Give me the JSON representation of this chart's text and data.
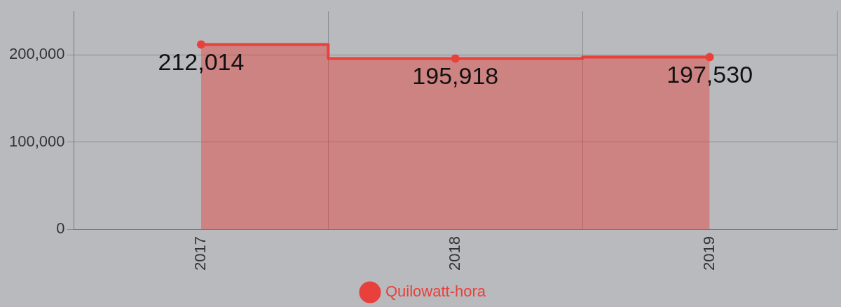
{
  "chart_data": {
    "type": "area",
    "categories": [
      "2017",
      "2018",
      "2019"
    ],
    "series": [
      {
        "name": "Quilowatt-hora",
        "color": "#e8413c",
        "values": [
          212014,
          195918,
          197530
        ],
        "value_labels": [
          "212,014",
          "195,918",
          "197,530"
        ]
      }
    ],
    "ylim": [
      0,
      250000
    ],
    "yticks": [
      {
        "value": 0,
        "label": "0"
      },
      {
        "value": 100000,
        "label": "100,000"
      },
      {
        "value": 200000,
        "label": "200,000"
      }
    ],
    "grid": true,
    "legend": "bottom",
    "marker": "circle"
  }
}
